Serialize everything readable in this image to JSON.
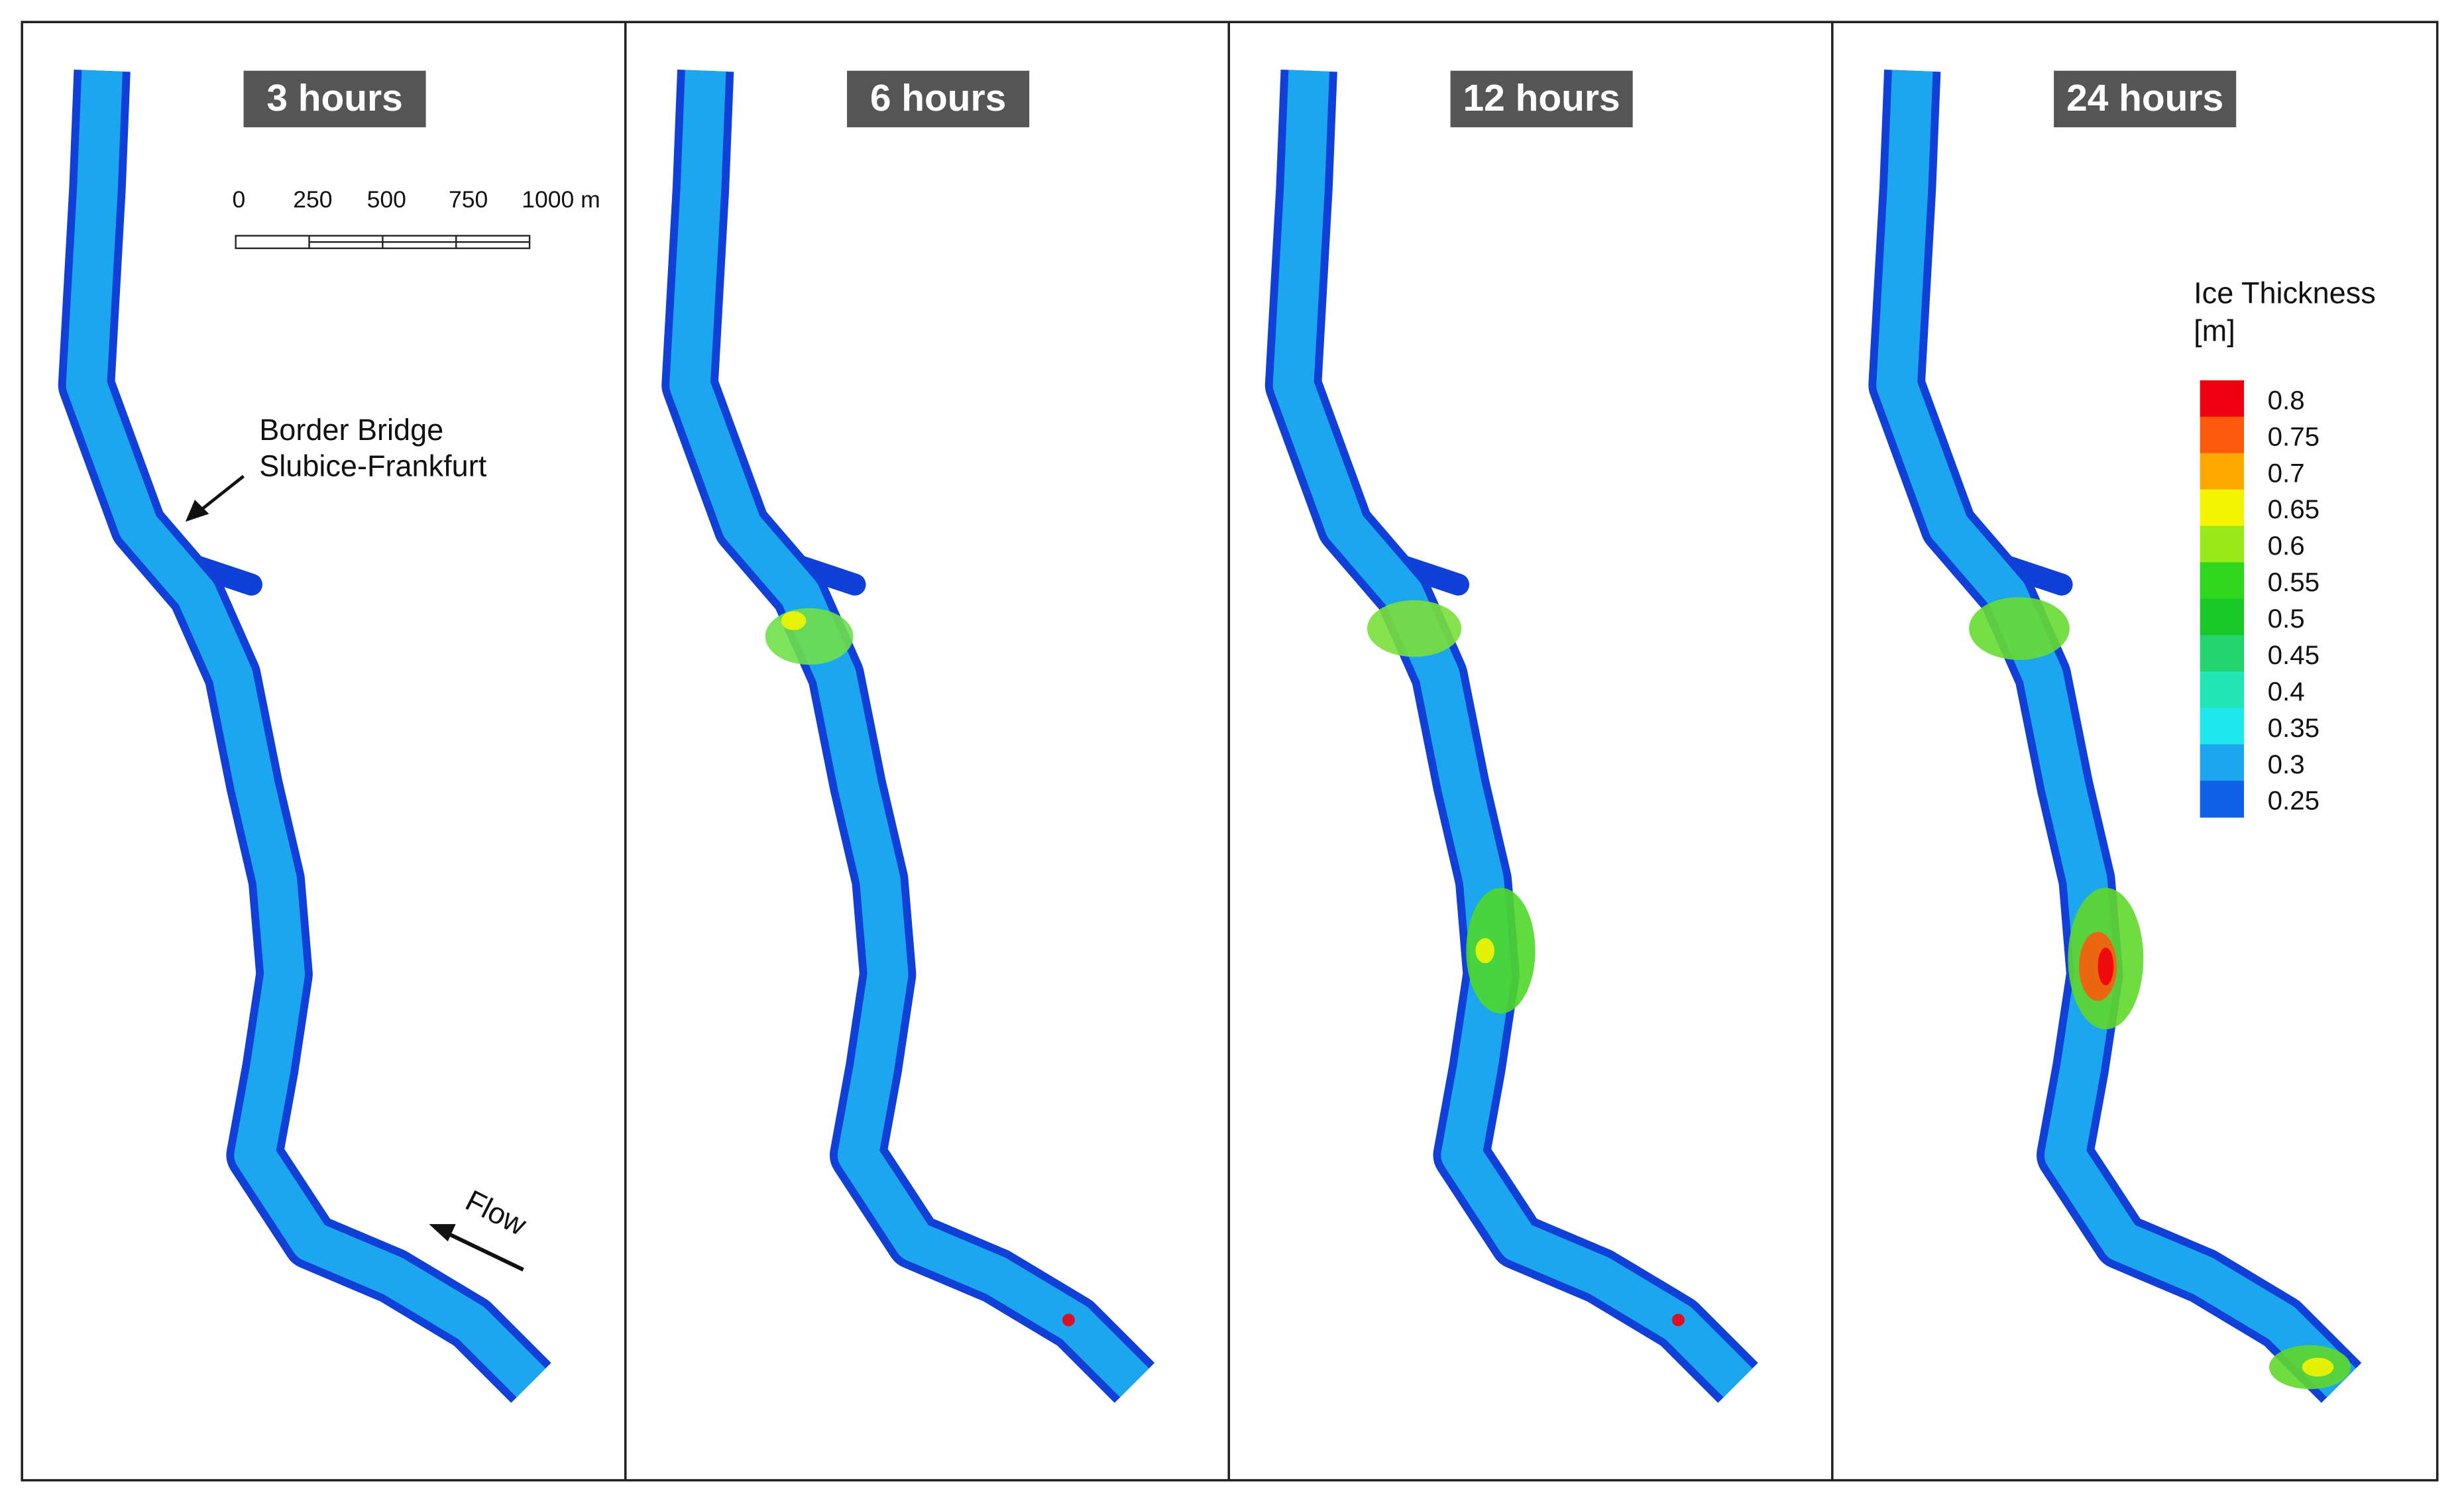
{
  "panels": [
    {
      "title": "3 hours"
    },
    {
      "title": "6 hours"
    },
    {
      "title": "12 hours"
    },
    {
      "title": "24 hours"
    }
  ],
  "scale_bar": {
    "labels": [
      "0",
      "250",
      "500",
      "750",
      "1000 m"
    ]
  },
  "annotations": {
    "bridge": [
      "Border Bridge",
      "Slubice-Frankfurt"
    ],
    "flow": "Flow"
  },
  "legend": {
    "title": [
      "Ice Thickness",
      "[m]"
    ],
    "levels": [
      {
        "label": "0.8",
        "color": "#ee0010"
      },
      {
        "label": "0.75",
        "color": "#fb5a0c"
      },
      {
        "label": "0.7",
        "color": "#ffa800"
      },
      {
        "label": "0.65",
        "color": "#f4f400"
      },
      {
        "label": "0.6",
        "color": "#9ae81a"
      },
      {
        "label": "0.55",
        "color": "#2fd81f"
      },
      {
        "label": "0.5",
        "color": "#19c92a"
      },
      {
        "label": "0.45",
        "color": "#23d46e"
      },
      {
        "label": "0.4",
        "color": "#22e6b6"
      },
      {
        "label": "0.35",
        "color": "#1ee8ee"
      },
      {
        "label": "0.3",
        "color": "#1ba6ee"
      },
      {
        "label": "0.25",
        "color": "#1060e8"
      }
    ]
  }
}
